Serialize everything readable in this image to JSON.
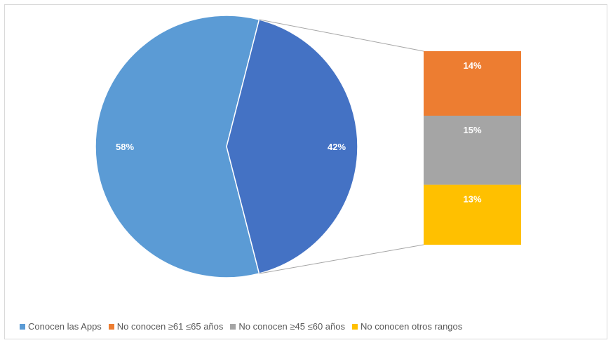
{
  "chart_data": {
    "type": "pie",
    "subtype": "bar-of-pie",
    "pie": [
      {
        "name": "Conocen las Apps",
        "value": 58,
        "label": "58%",
        "color": "#5b9bd5"
      },
      {
        "name": "No conocen",
        "value": 42,
        "label": "42%",
        "color": "#4472c4"
      }
    ],
    "bar": [
      {
        "name": "No conocen ≥61 ≤65 años",
        "value": 14,
        "label": "14%",
        "color": "#ed7d31"
      },
      {
        "name": "No conocen ≥45 ≤60 años",
        "value": 15,
        "label": "15%",
        "color": "#a5a5a5"
      },
      {
        "name": "No conocen otros rangos",
        "value": 13,
        "label": "13%",
        "color": "#ffc000"
      }
    ],
    "legend": [
      {
        "label": "Conocen las Apps",
        "color": "#5b9bd5"
      },
      {
        "label": "No conocen  ≥61 ≤65 años",
        "color": "#ed7d31"
      },
      {
        "label": "No conocen  ≥45 ≤60 años",
        "color": "#a5a5a5"
      },
      {
        "label": "No conocen otros rangos",
        "color": "#ffc000"
      }
    ],
    "legend_position": "bottom",
    "title": ""
  }
}
